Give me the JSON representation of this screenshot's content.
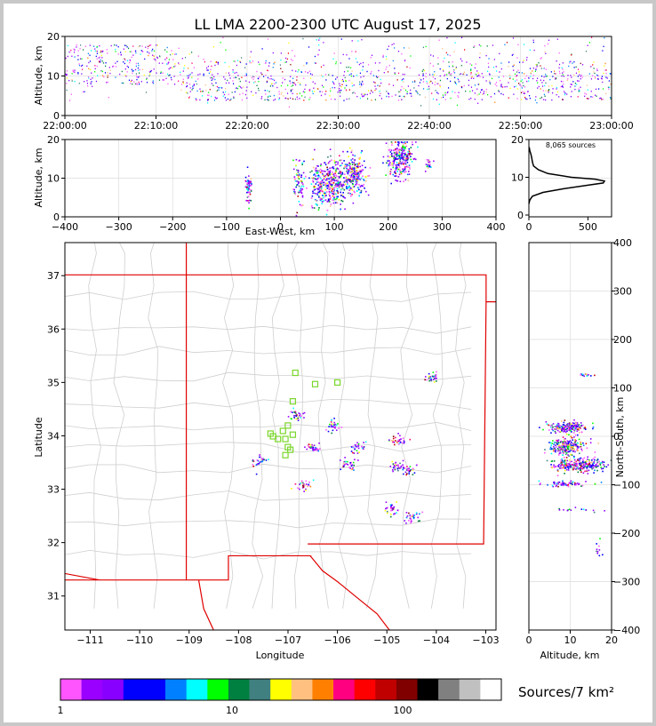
{
  "colors": {
    "frame": "#c8c8c8",
    "grid": "#dddddd",
    "map_lines": "#cfcfcf",
    "nm_border": "#e00000",
    "station": "#7ad62b"
  },
  "chart_data": [
    {
      "id": "altitude-time",
      "type": "scatter",
      "title": "LL LMA 2200-2300 UTC August 17, 2025",
      "ylabel": "Altitude, km",
      "xlabel": "",
      "ylim": [
        0,
        20
      ],
      "y_ticks": [
        "0",
        "10",
        "20"
      ],
      "x_ticks": [
        "22:00:00",
        "22:10:00",
        "22:20:00",
        "22:30:00",
        "22:40:00",
        "22:50:00",
        "23:00:00"
      ],
      "grid": true
    },
    {
      "id": "altitude-eastwest",
      "type": "scatter",
      "xlabel": "East-West, km",
      "ylabel": "Altitude, km",
      "xlim": [
        -400,
        400
      ],
      "ylim": [
        0,
        20
      ],
      "x_ticks": [
        "−400",
        "−300",
        "−200",
        "−100",
        "0",
        "100",
        "200",
        "300",
        "400"
      ],
      "y_ticks": [
        "0",
        "10",
        "20"
      ],
      "clusters_x_km": [
        -60,
        35,
        70,
        100,
        135,
        220,
        275
      ]
    },
    {
      "id": "altitude-histogram",
      "type": "line",
      "annotation": "8,065 sources",
      "xlim": [
        0,
        700
      ],
      "ylim": [
        0,
        20
      ],
      "x_ticks": [
        "0",
        "500"
      ],
      "y_ticks": [
        "0",
        "10",
        "20"
      ],
      "profile_altitude_km": [
        3,
        4,
        5,
        6,
        7,
        8,
        8.5,
        9,
        9.5,
        10,
        11,
        12,
        13,
        14,
        15,
        16,
        17,
        18
      ],
      "profile_count": [
        0,
        8,
        30,
        120,
        300,
        520,
        630,
        640,
        560,
        360,
        160,
        80,
        40,
        30,
        25,
        18,
        8,
        2
      ]
    },
    {
      "id": "plan-view",
      "type": "scatter",
      "xlabel": "Longitude",
      "ylabel": "Latitude",
      "xlim": [
        -111.5,
        -102.8
      ],
      "ylim": [
        30.4,
        37.6
      ],
      "x_ticks": [
        "−111",
        "−110",
        "−109",
        "−108",
        "−107",
        "−106",
        "−105",
        "−104",
        "−103"
      ],
      "y_ticks": [
        "31",
        "32",
        "33",
        "34",
        "35",
        "36",
        "37"
      ],
      "stations_lonlat": [
        [
          -106.85,
          35.18
        ],
        [
          -106.45,
          34.97
        ],
        [
          -106.0,
          35.0
        ],
        [
          -106.9,
          34.65
        ],
        [
          -107.0,
          34.2
        ],
        [
          -107.1,
          34.1
        ],
        [
          -107.3,
          34.0
        ],
        [
          -107.2,
          33.95
        ],
        [
          -107.05,
          33.95
        ],
        [
          -106.9,
          34.03
        ],
        [
          -107.0,
          33.8
        ],
        [
          -106.95,
          33.75
        ],
        [
          -107.05,
          33.65
        ],
        [
          -107.35,
          34.05
        ]
      ],
      "storms_lonlat": [
        [
          -106.1,
          34.2
        ],
        [
          -106.5,
          33.8
        ],
        [
          -106.85,
          34.4
        ],
        [
          -107.6,
          33.55
        ],
        [
          -105.8,
          33.5
        ],
        [
          -105.6,
          33.8
        ],
        [
          -104.8,
          33.45
        ],
        [
          -104.6,
          33.4
        ],
        [
          -106.7,
          33.1
        ],
        [
          -104.8,
          33.95
        ],
        [
          -104.1,
          35.1
        ],
        [
          -104.5,
          32.5
        ],
        [
          -104.9,
          32.65
        ]
      ]
    },
    {
      "id": "northsouth-altitude",
      "type": "scatter",
      "xlabel": "Altitude, km",
      "ylabel": "North-South, km",
      "xlim": [
        0,
        20
      ],
      "ylim": [
        -400,
        400
      ],
      "x_ticks": [
        "0",
        "10",
        "20"
      ],
      "y_ticks": [
        "−400",
        "−300",
        "−200",
        "−100",
        "0",
        "100",
        "200",
        "300",
        "400"
      ]
    },
    {
      "id": "colorbar",
      "type": "heatmap",
      "label": "Sources/7 km²",
      "tick_labels": [
        "1",
        "10",
        "100"
      ],
      "colors": [
        "#ff55ff",
        "#9900ff",
        "#8800ff",
        "#0000ff",
        "#0000ff",
        "#0080ff",
        "#00ffff",
        "#00ff00",
        "#008040",
        "#408080",
        "#ffff00",
        "#ffc080",
        "#ff8000",
        "#ff0080",
        "#ff0000",
        "#c00000",
        "#800000",
        "#000000",
        "#808080",
        "#c0c0c0",
        "#ffffff"
      ]
    }
  ]
}
